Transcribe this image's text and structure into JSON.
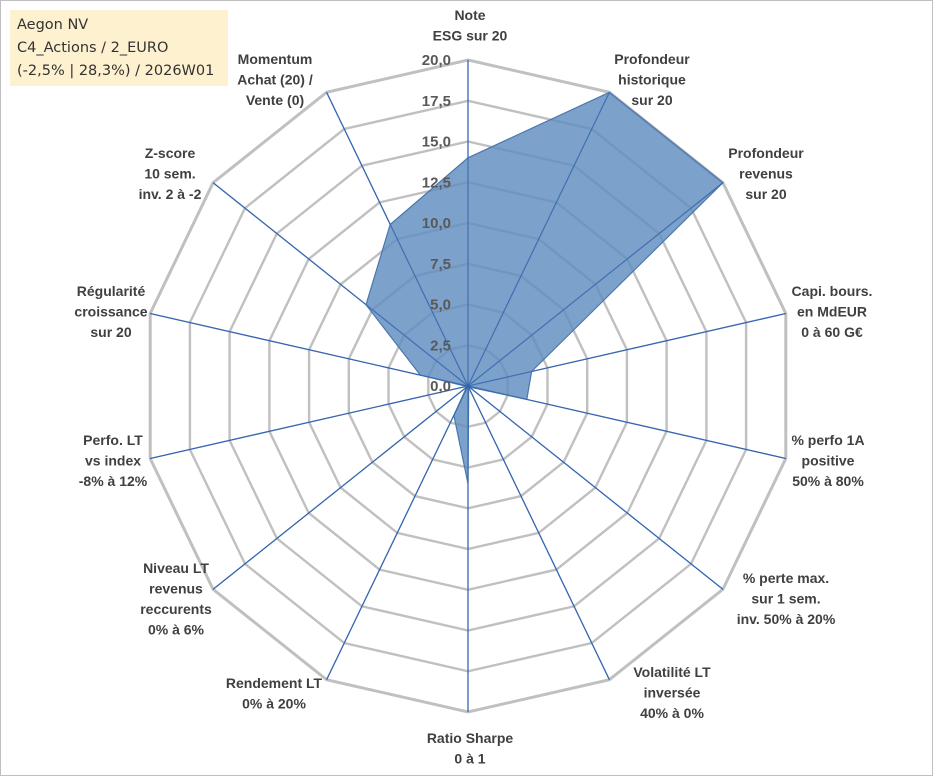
{
  "title_box": {
    "line1": "Aegon NV",
    "line2": "C4_Actions / 2_EURO",
    "line3": "(-2,5% | 28,3%) / 2026W01"
  },
  "chart_data": {
    "type": "radar",
    "title": "Aegon NV",
    "range": [
      0,
      20
    ],
    "ticks": [
      "0,0",
      "2,5",
      "5,0",
      "7,5",
      "10,0",
      "12,5",
      "15,0",
      "17,5",
      "20,0"
    ],
    "axes": [
      {
        "lines": [
          "Note",
          "ESG sur 20"
        ],
        "value": 14.0
      },
      {
        "lines": [
          "Profondeur",
          "historique",
          "sur 20"
        ],
        "value": 20.0
      },
      {
        "lines": [
          "Profondeur",
          "revenus",
          "sur 20"
        ],
        "value": 20.0
      },
      {
        "lines": [
          "Capi. bours.",
          "en MdEUR",
          "0 à 60 G€"
        ],
        "value": 4.0
      },
      {
        "lines": [
          "% perfo 1A",
          "positive",
          "50% à 80%"
        ],
        "value": 3.7
      },
      {
        "lines": [
          "% perte max.",
          "sur 1 sem.",
          "inv. 50% à 20%"
        ],
        "value": 0.1
      },
      {
        "lines": [
          "Volatilité LT",
          "inversée",
          "40% à 0%"
        ],
        "value": 0.1
      },
      {
        "lines": [
          "Ratio Sharpe",
          "0 à 1"
        ],
        "value": 6.0
      },
      {
        "lines": [
          "Rendement LT",
          "0% à 20%"
        ],
        "value": 2.0
      },
      {
        "lines": [
          "Niveau LT",
          "revenus",
          "reccurents",
          "0% à 6%"
        ],
        "value": 0.1
      },
      {
        "lines": [
          "Perfo. LT",
          "vs index",
          "-8% à 12%"
        ],
        "value": 0.1
      },
      {
        "lines": [
          "Régularité",
          "croissance",
          "sur 20"
        ],
        "value": 3.0
      },
      {
        "lines": [
          "Z-score",
          "10 sem.",
          "inv. 2 à -2"
        ],
        "value": 8.0
      },
      {
        "lines": [
          "Momentum",
          "Achat (20) /",
          "Vente (0)"
        ],
        "value": 11.0
      }
    ],
    "series": [
      {
        "name": "Aegon NV",
        "color": "#4f7fb4"
      }
    ],
    "colors": {
      "grid": "#c0c0c0",
      "spoke": "#3f6fb8",
      "fill": "#5f8cbf",
      "fill_edge": "#4a78ad"
    }
  }
}
